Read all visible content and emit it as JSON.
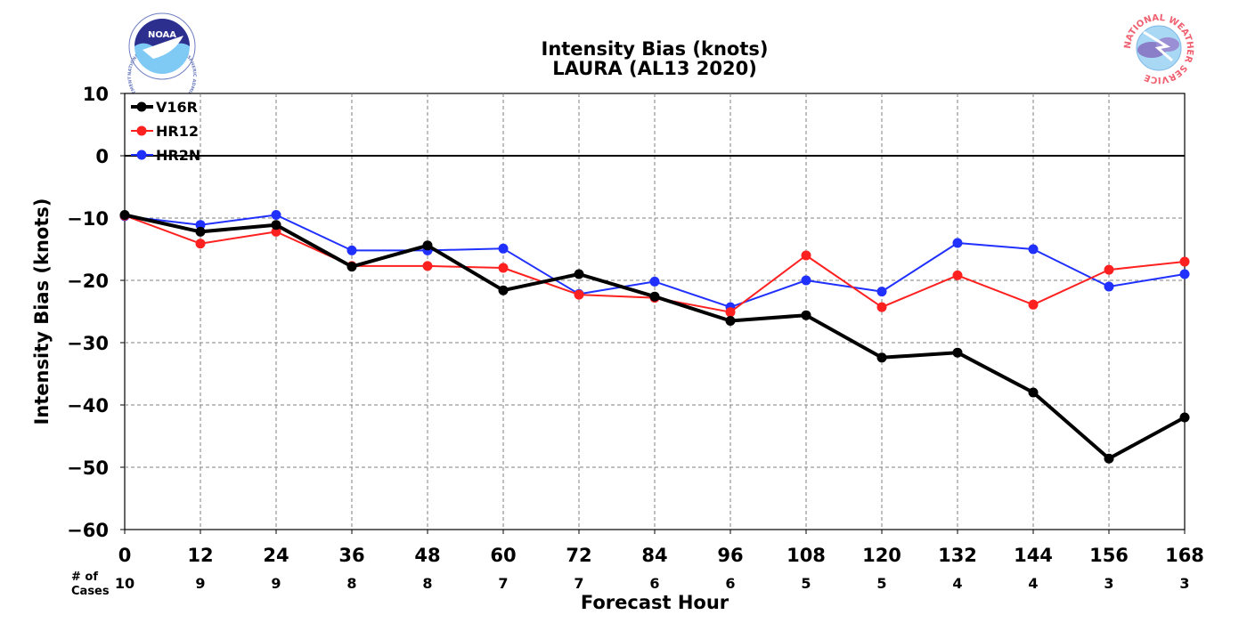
{
  "chart_data": {
    "type": "line",
    "title": "Intensity Bias (knots)",
    "subtitle": "LAURA (AL13 2020)",
    "xlabel": "Forecast Hour",
    "ylabel": "Intensity Bias (knots)",
    "x": [
      0,
      12,
      24,
      36,
      48,
      60,
      72,
      84,
      96,
      108,
      120,
      132,
      144,
      156,
      168
    ],
    "xlim": [
      0,
      168
    ],
    "ylim": [
      -60,
      10
    ],
    "yticks": [
      10,
      0,
      -10,
      -20,
      -30,
      -40,
      -50,
      -60
    ],
    "ytick_labels": [
      "10",
      "0",
      "−10",
      "−20",
      "−30",
      "−40",
      "−50",
      "−60"
    ],
    "xtick_labels": [
      "0",
      "12",
      "24",
      "36",
      "48",
      "60",
      "72",
      "84",
      "96",
      "108",
      "120",
      "132",
      "144",
      "156",
      "168"
    ],
    "grid": true,
    "legend_position": "top-left",
    "cases_label": "# of\nCases",
    "cases": [
      "10",
      "9",
      "9",
      "8",
      "8",
      "7",
      "7",
      "6",
      "6",
      "5",
      "5",
      "4",
      "4",
      "3",
      "3"
    ],
    "series": [
      {
        "name": "V16R",
        "color": "#000000",
        "values": [
          -9.5,
          -12.2,
          -11.1,
          -17.8,
          -14.4,
          -21.6,
          -19.0,
          -22.6,
          -26.5,
          -25.6,
          -32.4,
          -31.6,
          -38.0,
          -48.6,
          -42.0
        ]
      },
      {
        "name": "HR12",
        "color": "#ff2020",
        "values": [
          -9.6,
          -14.1,
          -12.2,
          -17.7,
          -17.7,
          -18.0,
          -22.3,
          -22.8,
          -25.1,
          -16.0,
          -24.3,
          -19.2,
          -23.9,
          -18.3,
          -17.0
        ]
      },
      {
        "name": "HR2N",
        "color": "#2030ff",
        "values": [
          -9.7,
          -11.1,
          -9.5,
          -15.2,
          -15.2,
          -14.9,
          -22.2,
          -20.2,
          -24.3,
          -20.0,
          -21.8,
          -14.0,
          -15.0,
          -21.0,
          -19.0
        ]
      }
    ]
  },
  "logos": {
    "noaa_text": "NOAA",
    "noaa_ring_text": "NATIONAL OCEANIC AND ATMOSPHERIC ADMINISTRATION · U.S. DEPARTMENT OF COMMERCE",
    "nws_ring_text": "NATIONAL WEATHER SERVICE"
  }
}
